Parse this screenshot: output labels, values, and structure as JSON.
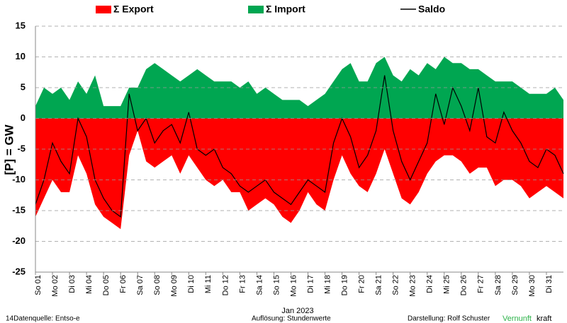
{
  "chart_data": {
    "type": "area",
    "ylabel": "[P]  = GW",
    "xlabel": "Jan 2023",
    "footer": {
      "source": "14Datenquelle: Entso-e",
      "resolution": "Auflösung: Stundenwerte",
      "author": "Darstellung:  Rolf Schuster",
      "brand1": "Vernunft",
      "brand2": "kraft"
    },
    "xlim": [
      0,
      31
    ],
    "ylim": [
      -25,
      15
    ],
    "yticks": [
      -25,
      -20,
      -15,
      -10,
      -5,
      0,
      5,
      10,
      15
    ],
    "grid": true,
    "xticks": [
      {
        "value": 0,
        "label": "So 01"
      },
      {
        "value": 1,
        "label": "Mo 02"
      },
      {
        "value": 2,
        "label": "Di 03"
      },
      {
        "value": 3,
        "label": "Mi 04"
      },
      {
        "value": 4,
        "label": "Do 05"
      },
      {
        "value": 5,
        "label": "Fr 06"
      },
      {
        "value": 6,
        "label": "Sa 07"
      },
      {
        "value": 7,
        "label": "So 08"
      },
      {
        "value": 8,
        "label": "Mo 09"
      },
      {
        "value": 9,
        "label": "Di 10"
      },
      {
        "value": 10,
        "label": "Mi 11"
      },
      {
        "value": 11,
        "label": "Do 12"
      },
      {
        "value": 12,
        "label": "Fr 13"
      },
      {
        "value": 13,
        "label": "Sa 14"
      },
      {
        "value": 14,
        "label": "So 15"
      },
      {
        "value": 15,
        "label": "Mo 16"
      },
      {
        "value": 16,
        "label": "Di 17"
      },
      {
        "value": 17,
        "label": "Mi 18"
      },
      {
        "value": 18,
        "label": "Do 19"
      },
      {
        "value": 19,
        "label": "Fr 20"
      },
      {
        "value": 20,
        "label": "Sa 21"
      },
      {
        "value": 21,
        "label": "So 22"
      },
      {
        "value": 22,
        "label": "Mo 23"
      },
      {
        "value": 23,
        "label": "Di 24"
      },
      {
        "value": 24,
        "label": "Mi 25"
      },
      {
        "value": 25,
        "label": "Do 26"
      },
      {
        "value": 26,
        "label": "Fr 27"
      },
      {
        "value": 27,
        "label": "Sa 28"
      },
      {
        "value": 28,
        "label": "So 29"
      },
      {
        "value": 29,
        "label": "Mo 30"
      },
      {
        "value": 30,
        "label": "Di 31"
      }
    ],
    "x": [
      0,
      0.5,
      1,
      1.5,
      2,
      2.5,
      3,
      3.5,
      4,
      4.5,
      5,
      5.5,
      6,
      6.5,
      7,
      7.5,
      8,
      8.5,
      9,
      9.5,
      10,
      10.5,
      11,
      11.5,
      12,
      12.5,
      13,
      13.5,
      14,
      14.5,
      15,
      15.5,
      16,
      16.5,
      17,
      17.5,
      18,
      18.5,
      19,
      19.5,
      20,
      20.5,
      21,
      21.5,
      22,
      22.5,
      23,
      23.5,
      24,
      24.5,
      25,
      25.5,
      26,
      26.5,
      27,
      27.5,
      28,
      28.5,
      29,
      29.5,
      30,
      30.5,
      31
    ],
    "series": [
      {
        "name": "Σ Export",
        "style": "area",
        "color": "#ff0000",
        "values": [
          -16,
          -13,
          -10,
          -12,
          -12,
          -6,
          -9,
          -14,
          -16,
          -17,
          -18,
          -6,
          -2,
          -7,
          -8,
          -7,
          -6,
          -9,
          -6,
          -8,
          -10,
          -11,
          -10,
          -12,
          -12,
          -15,
          -14,
          -13,
          -14,
          -16,
          -17,
          -15,
          -12,
          -14,
          -15,
          -10,
          -6,
          -9,
          -11,
          -12,
          -9,
          -5,
          -9,
          -13,
          -14,
          -12,
          -9,
          -7,
          -6,
          -6,
          -7,
          -9,
          -8,
          -8,
          -11,
          -10,
          -10,
          -11,
          -13,
          -12,
          -11,
          -12,
          -13
        ]
      },
      {
        "name": "Σ Import",
        "style": "area",
        "color": "#00a651",
        "values": [
          2,
          5,
          4,
          5,
          3,
          6,
          4,
          7,
          2,
          2,
          2,
          5,
          5,
          8,
          9,
          8,
          7,
          6,
          7,
          8,
          7,
          6,
          6,
          6,
          5,
          6,
          4,
          5,
          4,
          3,
          3,
          3,
          2,
          3,
          4,
          6,
          8,
          9,
          6,
          6,
          9,
          10,
          7,
          6,
          8,
          7,
          9,
          8,
          10,
          9,
          9,
          8,
          8,
          7,
          6,
          6,
          6,
          5,
          4,
          4,
          4,
          5,
          3
        ]
      },
      {
        "name": "Saldo",
        "style": "line",
        "color": "#000000",
        "values": [
          -14,
          -10,
          -4,
          -7,
          -9,
          0,
          -3,
          -10,
          -13,
          -15,
          -16,
          4,
          -2,
          0,
          -4,
          -2,
          -1,
          -4,
          1,
          -5,
          -6,
          -5,
          -8,
          -9,
          -11,
          -12,
          -11,
          -10,
          -12,
          -13,
          -14,
          -12,
          -10,
          -11,
          -12,
          -4,
          0,
          -3,
          -8,
          -6,
          -2,
          7,
          -2,
          -7,
          -10,
          -7,
          -4,
          4,
          -1,
          5,
          2,
          -2,
          5,
          -3,
          -4,
          1,
          -2,
          -4,
          -7,
          -8,
          -5,
          -6,
          -9
        ]
      }
    ]
  }
}
